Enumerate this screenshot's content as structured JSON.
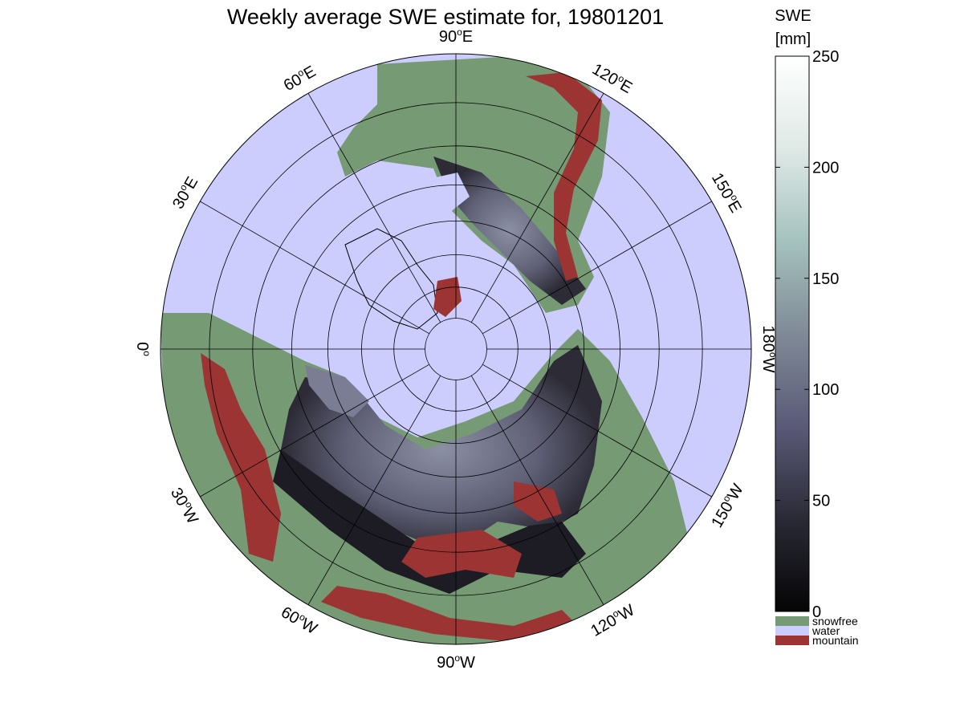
{
  "title": "Weekly average SWE estimate for, 19801201",
  "colorbar": {
    "title_line1": "SWE",
    "title_line2": "[mm]",
    "ticks": [
      0,
      50,
      100,
      150,
      200,
      250
    ],
    "min": 0,
    "max": 250,
    "gradient": [
      "#050505",
      "#2a2a36",
      "#5a5a78",
      "#7f8a96",
      "#a5c2be",
      "#dfe9e6",
      "#ffffff"
    ]
  },
  "legend": [
    {
      "label": "snowfree",
      "color": "#769a74"
    },
    {
      "label": "water",
      "color": "#cccdfd"
    },
    {
      "label": "mountain",
      "color": "#9b3433"
    }
  ],
  "map": {
    "projection": "north polar stereographic",
    "water_color": "#cccdfd",
    "land_color": "#769a74",
    "snow_color": "#5f6076",
    "mountain_color": "#9b3433",
    "grid_color": "#000000",
    "longitude_labels": [
      {
        "deg": "90",
        "hem": "W",
        "lon_deg": -90
      },
      {
        "deg": "120",
        "hem": "W",
        "lon_deg": -120
      },
      {
        "deg": "150",
        "hem": "W",
        "lon_deg": -150
      },
      {
        "deg": "180",
        "hem": "W",
        "lon_deg": 180
      },
      {
        "deg": "150",
        "hem": "E",
        "lon_deg": 150
      },
      {
        "deg": "120",
        "hem": "E",
        "lon_deg": 120
      },
      {
        "deg": "90",
        "hem": "E",
        "lon_deg": 90
      },
      {
        "deg": "60",
        "hem": "E",
        "lon_deg": 60
      },
      {
        "deg": "30",
        "hem": "E",
        "lon_deg": 30
      },
      {
        "deg": "0",
        "hem": "",
        "lon_deg": 0
      },
      {
        "deg": "30",
        "hem": "W",
        "lon_deg": -30
      },
      {
        "deg": "60",
        "hem": "W",
        "lon_deg": -60
      }
    ],
    "latitude_circles_deg": [
      80,
      70,
      60,
      50,
      40,
      30,
      20
    ]
  }
}
